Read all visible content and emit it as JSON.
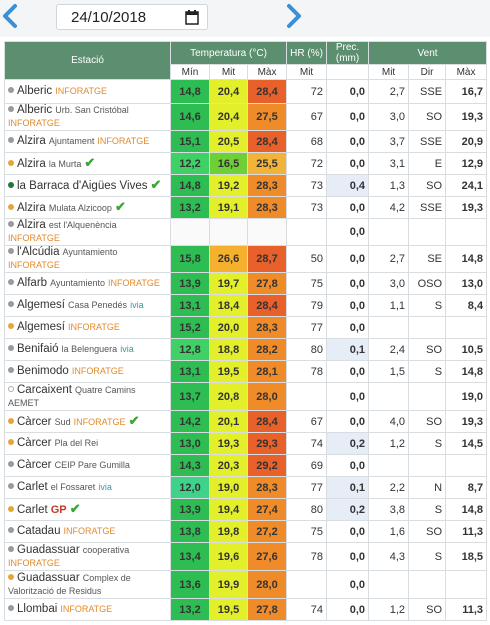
{
  "date": {
    "value": "24/10/2018"
  },
  "icons": {
    "prev": "chevron-left-icon",
    "next": "chevron-right-icon",
    "calendar": "calendar-icon",
    "check": "check-icon"
  },
  "headers": {
    "station": "Estació",
    "temperature": "Temperatura (°C)",
    "hr": "HR (%)",
    "prec": "Prec. (mm)",
    "wind": "Vent",
    "sub": {
      "min": "Mín",
      "mit": "Mit",
      "max": "Màx",
      "hr_mit": "Mit",
      "w_mit": "Mit",
      "w_dir": "Dir",
      "w_max": "Màx"
    }
  },
  "colors": {
    "header_bg": "#5b8f6f",
    "min_green": "#2dbd52",
    "min_green_light": "#3ed28a",
    "mit_yellow": "#e3ef2a",
    "mit_green": "#6fcf36",
    "max_orange": "#f08b2a",
    "max_red_orange": "#e8602a",
    "dot_gray": "#9a9a9a",
    "dot_orange": "#e8a53a",
    "dot_green": "#1a7a3a"
  },
  "rows": [
    {
      "name": "Alberic",
      "sub": "",
      "brand": "INFORATGE",
      "dot": "gray",
      "check": false,
      "min": "14,8",
      "mit": "20,4",
      "max": "28,4",
      "hr": "72",
      "prec": "0,0",
      "wmit": "2,7",
      "wdir": "SSE",
      "wmax": "16,7"
    },
    {
      "name": "Alberic",
      "sub": "Urb. San Cristóbal",
      "brand": "INFORATGE",
      "dot": "gray",
      "check": false,
      "min": "14,6",
      "mit": "20,4",
      "max": "27,5",
      "hr": "67",
      "prec": "0,0",
      "wmit": "3,0",
      "wdir": "SO",
      "wmax": "19,3"
    },
    {
      "name": "Alzira",
      "sub": "Ajuntament",
      "brand": "INFORATGE",
      "dot": "gray",
      "check": false,
      "min": "15,1",
      "mit": "20,5",
      "max": "28,4",
      "hr": "68",
      "prec": "0,0",
      "wmit": "3,7",
      "wdir": "SSE",
      "wmax": "20,9"
    },
    {
      "name": "Alzira",
      "sub": "la Murta",
      "brand": "",
      "dot": "orange",
      "check": true,
      "min": "12,2",
      "mit": "16,5",
      "max": "25,5",
      "hr": "72",
      "prec": "0,0",
      "wmit": "3,1",
      "wdir": "E",
      "wmax": "12,9"
    },
    {
      "name": "la Barraca d'Aigües Vives",
      "sub": "",
      "brand": "",
      "dot": "green",
      "check": true,
      "min": "14,8",
      "mit": "19,2",
      "max": "28,3",
      "hr": "73",
      "prec": "0,4",
      "wmit": "1,3",
      "wdir": "SO",
      "wmax": "24,1"
    },
    {
      "name": "Alzira",
      "sub": "Mulata Alzicoop",
      "brand": "",
      "dot": "orange",
      "check": true,
      "min": "13,2",
      "mit": "19,1",
      "max": "28,3",
      "hr": "73",
      "prec": "0,0",
      "wmit": "4,2",
      "wdir": "SSE",
      "wmax": "19,3"
    },
    {
      "name": "Alzira",
      "sub": "est l'Alquenència",
      "brand": "INFORATGE",
      "dot": "gray",
      "check": false,
      "min": "",
      "mit": "",
      "max": "",
      "hr": "",
      "prec": "0,0",
      "wmit": "",
      "wdir": "",
      "wmax": ""
    },
    {
      "name": "l'Alcúdia",
      "sub": "Ayuntamiento",
      "brand": "INFORATGE",
      "dot": "gray",
      "check": false,
      "min": "15,8",
      "mit": "26,6",
      "max": "28,7",
      "hr": "50",
      "prec": "0,0",
      "wmit": "2,7",
      "wdir": "SE",
      "wmax": "14,8"
    },
    {
      "name": "Alfarb",
      "sub": "Ayuntamiento",
      "brand": "INFORATGE",
      "dot": "gray",
      "check": false,
      "min": "13,9",
      "mit": "19,7",
      "max": "27,8",
      "hr": "75",
      "prec": "0,0",
      "wmit": "3,0",
      "wdir": "OSO",
      "wmax": "13,0"
    },
    {
      "name": "Algemesí",
      "sub": "Casa Penedés",
      "brand": "ivia",
      "dot": "gray",
      "check": false,
      "min": "13,1",
      "mit": "18,4",
      "max": "28,4",
      "hr": "79",
      "prec": "0,0",
      "wmit": "1,1",
      "wdir": "S",
      "wmax": "8,4"
    },
    {
      "name": "Algemesí",
      "sub": "",
      "brand": "INFORATGE",
      "dot": "orange",
      "check": false,
      "min": "15,2",
      "mit": "20,0",
      "max": "28,3",
      "hr": "77",
      "prec": "0,0",
      "wmit": "",
      "wdir": "",
      "wmax": ""
    },
    {
      "name": "Benifaió",
      "sub": "la Belenguera",
      "brand": "ivia",
      "dot": "gray",
      "check": false,
      "min": "12,8",
      "mit": "18,8",
      "max": "28,2",
      "hr": "80",
      "prec": "0,1",
      "wmit": "2,4",
      "wdir": "SO",
      "wmax": "10,5"
    },
    {
      "name": "Benimodo",
      "sub": "",
      "brand": "INFORATGE",
      "dot": "gray",
      "check": false,
      "min": "13,1",
      "mit": "19,5",
      "max": "28,1",
      "hr": "78",
      "prec": "0,0",
      "wmit": "1,5",
      "wdir": "S",
      "wmax": "14,8"
    },
    {
      "name": "Carcaixent",
      "sub": "Quatre Camins",
      "brand": "AEMET",
      "dot": "hollow",
      "check": false,
      "min": "13,7",
      "mit": "20,8",
      "max": "28,0",
      "hr": "",
      "prec": "0,0",
      "wmit": "",
      "wdir": "",
      "wmax": "19,0"
    },
    {
      "name": "Càrcer",
      "sub": "Sud",
      "brand": "INFORATGE",
      "dot": "orange",
      "check": true,
      "min": "14,2",
      "mit": "20,1",
      "max": "28,4",
      "hr": "67",
      "prec": "0,0",
      "wmit": "4,0",
      "wdir": "SO",
      "wmax": "19,3"
    },
    {
      "name": "Càrcer",
      "sub": "Pla del Rei",
      "brand": "",
      "dot": "orange",
      "check": false,
      "min": "13,0",
      "mit": "19,3",
      "max": "29,3",
      "hr": "74",
      "prec": "0,2",
      "wmit": "1,2",
      "wdir": "S",
      "wmax": "14,5"
    },
    {
      "name": "Càrcer",
      "sub": "CEIP Pare Gumilla",
      "brand": "",
      "dot": "gray",
      "check": false,
      "min": "14,3",
      "mit": "20,3",
      "max": "29,2",
      "hr": "69",
      "prec": "0,0",
      "wmit": "",
      "wdir": "",
      "wmax": ""
    },
    {
      "name": "Carlet",
      "sub": "el Fossaret",
      "brand": "ivia",
      "dot": "gray",
      "check": false,
      "min": "12,0",
      "mit": "19,0",
      "max": "28,3",
      "hr": "77",
      "prec": "0,1",
      "wmit": "2,2",
      "wdir": "N",
      "wmax": "8,7"
    },
    {
      "name": "Carlet",
      "sub": "",
      "brand": "GP",
      "dot": "orange",
      "check": true,
      "min": "13,9",
      "mit": "19,4",
      "max": "27,4",
      "hr": "80",
      "prec": "0,2",
      "wmit": "3,8",
      "wdir": "S",
      "wmax": "14,8"
    },
    {
      "name": "Catadau",
      "sub": "",
      "brand": "INFORATGE",
      "dot": "gray",
      "check": false,
      "min": "13,8",
      "mit": "19,8",
      "max": "27,2",
      "hr": "75",
      "prec": "0,0",
      "wmit": "1,6",
      "wdir": "SO",
      "wmax": "11,3"
    },
    {
      "name": "Guadassuar",
      "sub": "cooperativa",
      "brand": "INFORATGE",
      "dot": "gray",
      "check": false,
      "min": "13,4",
      "mit": "19,6",
      "max": "27,6",
      "hr": "78",
      "prec": "0,0",
      "wmit": "4,3",
      "wdir": "S",
      "wmax": "18,5"
    },
    {
      "name": "Guadassuar",
      "sub": "Complex de Valorització de Residus",
      "brand": "",
      "dot": "orange",
      "check": false,
      "min": "13,6",
      "mit": "19,9",
      "max": "28,0",
      "hr": "",
      "prec": "0,0",
      "wmit": "",
      "wdir": "",
      "wmax": ""
    },
    {
      "name": "Llombai",
      "sub": "",
      "brand": "INFORATGE",
      "dot": "gray",
      "check": false,
      "min": "13,2",
      "mit": "19,5",
      "max": "27,8",
      "hr": "74",
      "prec": "0,0",
      "wmit": "1,2",
      "wdir": "SO",
      "wmax": "11,3"
    }
  ]
}
